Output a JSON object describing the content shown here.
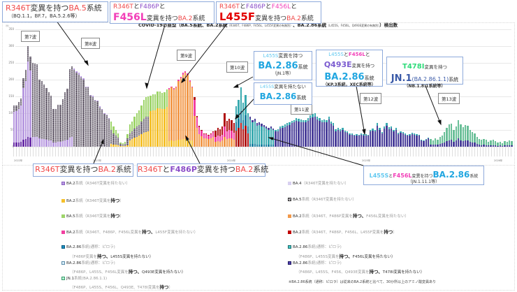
{
  "chart_data": {
    "type": "bar",
    "stacked": true,
    "title": "COVID-19の亜型（BA.5系統、BA.2系統（R346T、F486P、F456L、L455F変異の有無別）、BA.2.86系統（L455S、F456L、Q493E変異の有無別））検出数",
    "ylabel": "",
    "ylim": [
      0,
      350
    ],
    "yticks": [
      0,
      50,
      100,
      150,
      200,
      250,
      300,
      350
    ],
    "x_year_labels": [
      "2022年",
      "2023年",
      "2024年",
      "2025年",
      "2026年"
    ],
    "grid": true,
    "series_colors": {
      "BA4": "#d8d0f0",
      "BA2_noR346T": "#b89ae0",
      "BA2_purple_dark": "#6a2fa8",
      "BA5_noR346T": "#5c5560",
      "BA2_R346T": "#f5c02a",
      "BA5_R346T": "#9ed46a",
      "BA2_R346T_F486P": "#f2994a",
      "BA2_R346T_F486P_F456L": "#f23fa0",
      "BA2_R346T_F486P_F456L_L455F": "#b01010",
      "BA286_F486P_noL455S": "#1a7fa0",
      "BA286_L455S_F456L": "#3aaab0",
      "BA286_L455S_F456L_Q493E": "#4a3f9a",
      "JN1_T478I": "#6abf98"
    },
    "totals_estimated": [
      122,
      124,
      133,
      144,
      205,
      230,
      300,
      268,
      250,
      248,
      245,
      200,
      195,
      185,
      175,
      163,
      152,
      112,
      112,
      125,
      124,
      142,
      163,
      172,
      232,
      240,
      233,
      225,
      220,
      210,
      205,
      180,
      180,
      155,
      152,
      140,
      138,
      120,
      113,
      100,
      95,
      85,
      75,
      60,
      50,
      40,
      12,
      10,
      14,
      38,
      66,
      76,
      90,
      100,
      108,
      124,
      140,
      148,
      150,
      152,
      156,
      156,
      165,
      165,
      160,
      162,
      170,
      175,
      180,
      175,
      180,
      200,
      208,
      220,
      225,
      218,
      198,
      180,
      148,
      92,
      62,
      50,
      40,
      40,
      36,
      40,
      46,
      48,
      56,
      52,
      60,
      100,
      78,
      84,
      80,
      70,
      120,
      140,
      178,
      132,
      155,
      100,
      90,
      80,
      84,
      70,
      72,
      68,
      64,
      60,
      56,
      60,
      55,
      50,
      52,
      60,
      62,
      66,
      70,
      72,
      78,
      80,
      85,
      84,
      82,
      80,
      80,
      86,
      94,
      98,
      100,
      90,
      86,
      80,
      82,
      80,
      90,
      76,
      70,
      52,
      56,
      52,
      56,
      48,
      46,
      40,
      40,
      36,
      38,
      36,
      40,
      38,
      38,
      36,
      50,
      54,
      50,
      70,
      56,
      44,
      60,
      70,
      58,
      60,
      50,
      56,
      42,
      46,
      44,
      40,
      36,
      38,
      42,
      40,
      38,
      36,
      20,
      18,
      24,
      28,
      22,
      18,
      24,
      20,
      30,
      34,
      44,
      56,
      66,
      68,
      50,
      60,
      80,
      66,
      58,
      64,
      62,
      50,
      44,
      40,
      30,
      24,
      20,
      22,
      20,
      14,
      18,
      20,
      16,
      12,
      14,
      10,
      16,
      14,
      18,
      16
    ],
    "annotations": [
      "第7波",
      "第8波",
      "第9波",
      "第10波",
      "第11波",
      "第12波",
      "第13波"
    ]
  },
  "callouts": {
    "c1": {
      "line1_red": "R346T",
      "line1_rest": "変異を持つ",
      "line1_ba": "BA.5",
      "line1_tail": "系統",
      "line2": "（BQ.1.1，BF.7，BA.5.2.6等）"
    },
    "c2": {
      "a": "R346T",
      "to1": "と",
      "b": "F486P",
      "to2": "と",
      "c": "F456L",
      "rest": "変異を持つ",
      "ba": "BA.2",
      "tail": "系統"
    },
    "c3": {
      "a": "R346T",
      "to1": "と",
      "b": "F486P",
      "to2": "と",
      "c": "F456L",
      "to3": "と",
      "d": "L455F",
      "rest": "変異を持つ",
      "ba": "BA.2",
      "tail": "系統"
    },
    "c4": {
      "a": "L455S",
      "rest": "変異を持つ",
      "ba": "BA.2.86",
      "tail": "系統",
      "sub": "（JN.1等）"
    },
    "c5": {
      "a": "L455S",
      "rest": "変異を持たない",
      "ba": "BA.2.86",
      "tail": "系統"
    },
    "c6": {
      "a": "L455S",
      "to1": "と",
      "b": "F456L",
      "to2": "と",
      "c": "Q493E",
      "rest": "変異を持つ",
      "ba": "BA.2.86",
      "tail": "系統",
      "sub": "（KP.3系統，XEC系統等）"
    },
    "c7": {
      "a": "T478I",
      "rest": "変異を持つ",
      "ba": "JN.1",
      "paren": "(BA.2.86.1.1)",
      "tail": "系統",
      "sub": "（NB.1.8.1系統等）"
    },
    "c8": {
      "a": "R346T",
      "rest": "変異を持つ",
      "ba": "BA.2",
      "tail": "系統"
    },
    "c9": {
      "a": "R346T",
      "to1": "と",
      "b": "F486P",
      "rest": "変異を持つ",
      "ba": "BA.2",
      "tail": "系統"
    },
    "c10": {
      "a": "L455S",
      "to1": "と",
      "b": "F456L",
      "rest": "変異を持つ",
      "ba": "BA.2.86",
      "tail": "系統",
      "sub": "（JN.1.11.1等）"
    }
  },
  "waves": {
    "w7": "第7波",
    "w8": "第8波",
    "w9": "第9波",
    "w10": "第10波",
    "w11": "第11波",
    "w12": "第12波",
    "w13": "第13波"
  },
  "yaxis": {
    "unit": "（件）",
    "ticks": [
      "350",
      "300",
      "250",
      "200",
      "150",
      "100",
      "50",
      "0"
    ]
  },
  "title": {
    "main": "COVID-19の亜型（",
    "ba5": "BA.5系統、BA.2系統",
    "small1": "（R346T、F486P、F456L、L455F変異の有無別）",
    "mid": "、BA.2.86系統",
    "small2": "（L455S、F456L、Q493E変異の有無別）",
    "end": "）検出数"
  },
  "years": [
    "2022年",
    "2023年",
    "2024年",
    "2025年",
    "2026年"
  ],
  "legend": {
    "l1": {
      "color": "#b89ae0",
      "name": "BA.2",
      "kei": "系統",
      "paren": "（R346T変異を持たない）"
    },
    "l2": {
      "color": "#f5c02a",
      "name": "BA.2",
      "kei": "系統",
      "paren_a": "（R346T変異を",
      "bold": "持つ",
      "paren_b": "）"
    },
    "l3": {
      "color": "#9ed46a",
      "name": "BA.5",
      "kei": "系統",
      "paren_a": "（R346T変異を",
      "bold": "持つ",
      "paren_b": "）"
    },
    "l4": {
      "color": "#f23fa0",
      "name": "BA.2",
      "kei": "系統",
      "paren_a": "（R346T、F486P、F456L変異を",
      "bold": "持つ、",
      "paren_b": "L455F変異を持たない）"
    },
    "l5": {
      "color": "#1a8fc0",
      "name": "BA.2.86",
      "kei": "系統(通称：ピロラ)",
      "sub_a": "（F486P変異を",
      "bold": "持つ、",
      "sub_b": "L455S変異を持たない）"
    },
    "l6": {
      "color": "#b0dcf0",
      "name": "BA.2.86",
      "kei": "系統(通称：ピロラ)",
      "sub_a": "（F486P、L455S、F456L変異を",
      "bold": "持つ、",
      "sub_b": "Q493E変異を持たない）"
    },
    "l7": {
      "color": "#7de0b0",
      "name": "JN.1",
      "kei": "系統(BA.2.86.1.1)",
      "sub_a": "（F486P、L455S、F456L、Q493E、T478I変異を",
      "bold": "持つ",
      "sub_b": "）"
    },
    "r1": {
      "color": "#d8d0f0",
      "name": "BA.4",
      "paren": "（R346T変異を持たない）"
    },
    "r2": {
      "color": "#5c5560",
      "name": "BA.5",
      "kei": "系統",
      "paren": "（R346T変異を持たない）"
    },
    "r3": {
      "color": "#f2994a",
      "name": "BA.2",
      "kei": "系統",
      "paren_a": "（R346T、F486P変異を",
      "bold": "持つ、",
      "paren_b": "F456L変異を持たない）"
    },
    "r4": {
      "color": "#c00000",
      "name": "BA.2",
      "kei": "系統",
      "paren_a": "（R346T、F486P、F456L、L455F変異を",
      "bold": "持つ",
      "paren_b": "）"
    },
    "r5": {
      "color": "#40c8c8",
      "name": "BA.2.86",
      "kei": "系統(通称：ピロラ)",
      "sub_a": "（F486P、L455S変異を",
      "bold": "持つ、",
      "sub_b": "F456L変異を持たない）"
    },
    "r6": {
      "color": "#5040b0",
      "name": "BA.2.86",
      "kei": "系統(通称：ピロラ)",
      "sub_a": "（F486P、L455S、F456、Q493E変異を",
      "bold": "持つ、",
      "sub_b": "T478I変異を持たない）"
    }
  },
  "footnote": "※BA.2.86系統（通称：ピロラ）は従来のBA.2系統と比べて、30か所以上のアミノ酸変異あり"
}
